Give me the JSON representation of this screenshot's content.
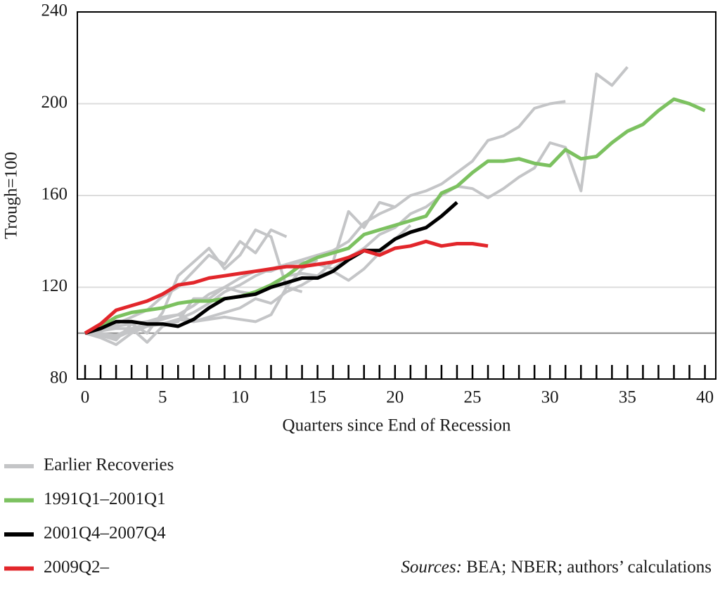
{
  "chart_data": {
    "type": "line",
    "xlabel": "Quarters since End of Recession",
    "ylabel": "Trough=100",
    "source_label": "Sources:",
    "source_text": "BEA; NBER; authors’ calculations",
    "x": [
      0,
      1,
      2,
      3,
      4,
      5,
      6,
      7,
      8,
      9,
      10,
      11,
      12,
      13,
      14,
      15,
      16,
      17,
      18,
      19,
      20,
      21,
      22,
      23,
      24,
      25,
      26,
      27,
      28,
      29,
      30,
      31,
      32,
      33,
      34,
      35,
      36,
      37,
      38,
      39,
      40
    ],
    "xlim": [
      -0.5,
      40.7
    ],
    "xticks": [
      0,
      5,
      10,
      15,
      20,
      25,
      30,
      35,
      40
    ],
    "ylim": [
      80,
      240
    ],
    "yticks": [
      80,
      120,
      160,
      200,
      240
    ],
    "reference_line": 100,
    "grid": true,
    "series": [
      {
        "name": "Earlier Recoveries",
        "color": "#c4c5c7",
        "lines": [
          [
            100,
            99,
            98,
            101,
            103,
            104,
            106,
            109,
            113,
            118,
            121,
            125,
            128,
            130,
            131,
            130,
            128,
            133,
            137,
            143,
            146,
            152,
            155,
            160,
            164,
            163,
            159,
            163,
            168,
            172,
            183,
            181,
            162,
            213,
            208,
            216,
            null,
            null,
            null,
            null,
            null
          ],
          [
            100,
            101,
            103,
            104,
            105,
            107,
            108,
            112,
            117,
            120,
            124,
            127,
            127,
            130,
            132,
            134,
            136,
            140,
            148,
            152,
            155,
            160,
            162,
            165,
            170,
            175,
            184,
            186,
            190,
            198,
            200,
            201,
            null,
            null,
            null,
            null,
            null,
            null,
            null,
            null,
            null
          ],
          [
            100,
            102,
            104,
            107,
            110,
            116,
            120,
            127,
            134,
            130,
            140,
            135,
            145,
            142,
            null,
            null,
            null,
            null,
            null,
            null,
            null,
            null,
            null,
            null,
            null,
            null,
            null,
            null,
            null,
            null,
            null,
            null,
            null,
            null,
            null,
            null,
            null,
            null,
            null,
            null,
            null
          ],
          [
            100,
            99,
            97,
            104,
            100,
            109,
            125,
            131,
            137,
            128,
            134,
            145,
            142,
            120,
            118,
            null,
            null,
            null,
            null,
            null,
            null,
            null,
            null,
            null,
            null,
            null,
            null,
            null,
            null,
            null,
            null,
            null,
            null,
            null,
            null,
            null,
            null,
            null,
            null,
            null,
            null
          ],
          [
            100,
            101,
            102,
            102,
            104,
            106,
            108,
            105,
            107,
            109,
            111,
            115,
            113,
            118,
            121,
            125,
            131,
            153,
            146,
            157,
            155,
            null,
            null,
            null,
            null,
            null,
            null,
            null,
            null,
            null,
            null,
            null,
            null,
            null,
            null,
            null,
            null,
            null,
            null,
            null,
            null
          ],
          [
            100,
            100,
            99,
            102,
            96,
            103,
            105,
            115,
            115,
            120,
            118,
            117,
            120,
            125,
            126,
            125,
            127,
            123,
            128,
            135,
            141,
            147,
            null,
            null,
            null,
            null,
            null,
            null,
            null,
            null,
            null,
            null,
            null,
            null,
            null,
            null,
            null,
            null,
            null,
            null,
            null
          ],
          [
            100,
            98,
            95,
            100,
            103,
            104,
            106,
            105,
            106,
            107,
            106,
            105,
            108,
            120,
            128,
            132,
            null,
            null,
            null,
            null,
            null,
            null,
            null,
            null,
            null,
            null,
            null,
            null,
            null,
            null,
            null,
            null,
            null,
            null,
            null,
            null,
            null,
            null,
            null,
            null,
            null
          ]
        ]
      },
      {
        "name": "1991Q1–2001Q1",
        "color": "#7cc160",
        "values": [
          100,
          103,
          107,
          109,
          110,
          111,
          113,
          114,
          114,
          115,
          116,
          118,
          121,
          125,
          130,
          133,
          135,
          137,
          143,
          145,
          147,
          149,
          151,
          161,
          164,
          170,
          175,
          175,
          176,
          174,
          173,
          180,
          176,
          177,
          183,
          188,
          191,
          197,
          202,
          200,
          197
        ]
      },
      {
        "name": "2001Q4–2007Q4",
        "color": "#000000",
        "values": [
          100,
          102,
          105,
          105,
          104,
          104,
          103,
          106,
          111,
          115,
          116,
          117,
          120,
          122,
          124,
          124,
          127,
          132,
          136,
          136,
          141,
          144,
          146,
          151,
          157,
          null,
          null,
          null,
          null,
          null,
          null,
          null,
          null,
          null,
          null,
          null,
          null,
          null,
          null,
          null,
          null
        ]
      },
      {
        "name": "2009Q2–",
        "color": "#e2262b",
        "values": [
          100,
          104,
          110,
          112,
          114,
          117,
          121,
          122,
          124,
          125,
          126,
          127,
          128,
          129,
          129,
          130,
          131,
          133,
          136,
          134,
          137,
          138,
          140,
          138,
          139,
          139,
          138,
          null,
          null,
          null,
          null,
          null,
          null,
          null,
          null,
          null,
          null,
          null,
          null,
          null,
          null
        ]
      }
    ]
  }
}
